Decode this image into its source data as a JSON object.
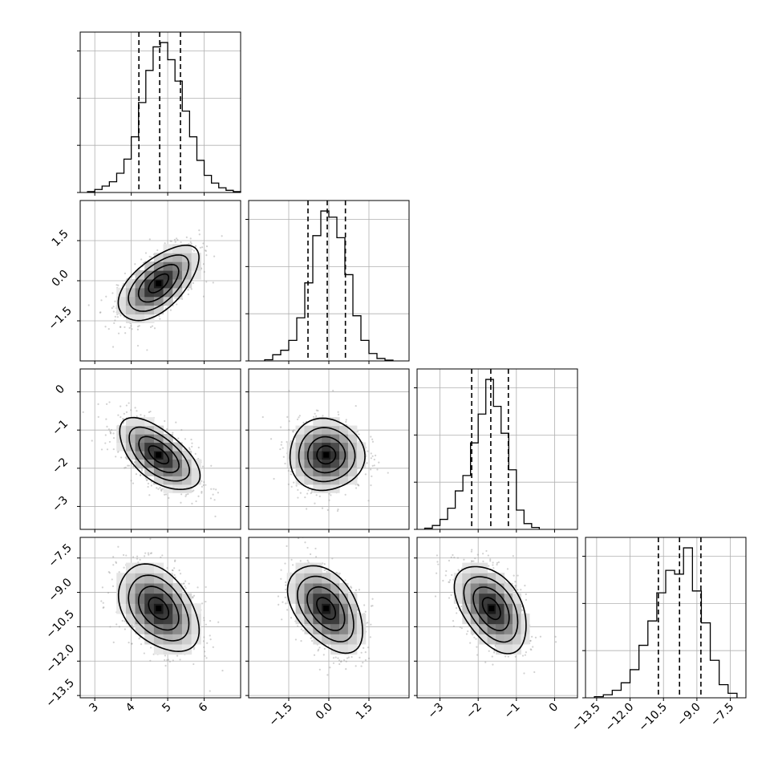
{
  "figure": {
    "kind": "corner-plot",
    "colors": {
      "line": "#000000",
      "grid": "#b0b0b0",
      "scatter": "#9a9a9a",
      "density": [
        "#ffffff",
        "#000000"
      ]
    }
  },
  "chart_data": [
    {
      "type": "histogram",
      "variable_index": 0,
      "xlim": [
        2.6,
        7.0
      ],
      "x_ticks": [
        3,
        4,
        5,
        6
      ],
      "grid": true,
      "bins": [
        2.8,
        3.0,
        3.2,
        3.4,
        3.6,
        3.8,
        4.0,
        4.2,
        4.4,
        4.6,
        4.8,
        5.0,
        5.2,
        5.4,
        5.6,
        5.8,
        6.0,
        6.2,
        6.4,
        6.6,
        6.8,
        7.0
      ],
      "counts": [
        0.2,
        0.7,
        1.5,
        2.5,
        4.5,
        7.8,
        13,
        21,
        28.5,
        34,
        35,
        31,
        26,
        19,
        13,
        7.5,
        4,
        2.2,
        1.1,
        0.5,
        0.2
      ],
      "quantiles": [
        4.21,
        4.78,
        5.35
      ]
    },
    {
      "type": "histogram",
      "variable_index": 1,
      "xlim": [
        -3.0,
        3.0
      ],
      "x_ticks": [
        -1.5,
        0.0,
        1.5
      ],
      "grid": true,
      "bins": [
        -2.4,
        -2.1,
        -1.8,
        -1.5,
        -1.2,
        -0.9,
        -0.6,
        -0.3,
        0.0,
        0.3,
        0.6,
        0.9,
        1.2,
        1.5,
        1.8,
        2.1,
        2.4
      ],
      "counts": [
        0.3,
        1.5,
        2.6,
        5,
        10.5,
        19,
        30.5,
        36.5,
        35,
        30,
        21,
        11,
        5,
        1.8,
        0.6,
        0.2
      ],
      "quantiles": [
        -0.78,
        -0.06,
        0.62
      ]
    },
    {
      "type": "histogram",
      "variable_index": 2,
      "xlim": [
        -3.6,
        0.6
      ],
      "x_ticks": [
        -3,
        -2,
        -1,
        0
      ],
      "grid": true,
      "bins": [
        -3.4,
        -3.2,
        -3.0,
        -2.8,
        -2.6,
        -2.4,
        -2.2,
        -2.0,
        -1.8,
        -1.6,
        -1.4,
        -1.2,
        -1.0,
        -0.8,
        -0.6,
        -0.4
      ],
      "counts": [
        0.3,
        1,
        2.6,
        5.5,
        10,
        14,
        22.5,
        30,
        39,
        32,
        25,
        15.5,
        5,
        1.5,
        0.5
      ],
      "quantiles": [
        -2.17,
        -1.67,
        -1.21
      ]
    },
    {
      "type": "histogram",
      "variable_index": 3,
      "xlim": [
        -14.0,
        -6.8
      ],
      "x_ticks": [
        -13.5,
        -12.0,
        -10.5,
        -9.0,
        -7.5
      ],
      "grid": true,
      "bins": [
        -13.6,
        -13.2,
        -12.8,
        -12.4,
        -12.0,
        -11.6,
        -11.2,
        -10.8,
        -10.4,
        -10.0,
        -9.6,
        -9.2,
        -8.8,
        -8.4,
        -8.0,
        -7.6,
        -7.2
      ],
      "counts": [
        0.3,
        0.8,
        2,
        4,
        7.5,
        14,
        20.5,
        28,
        34,
        33,
        40,
        28.5,
        20,
        10,
        3.5,
        1.2
      ],
      "quantiles": [
        -10.73,
        -9.78,
        -8.82
      ]
    },
    {
      "type": "heatmap",
      "x_variable": 0,
      "y_variable": 1,
      "xlim": [
        2.6,
        7.0
      ],
      "ylim": [
        -3.0,
        3.0
      ],
      "x_ticks": [
        3,
        4,
        5,
        6
      ],
      "y_ticks": [
        -1.5,
        0.0,
        1.5
      ],
      "center": [
        4.75,
        -0.1
      ],
      "sigma": [
        0.55,
        0.7
      ],
      "correlation": 0.6,
      "contour_levels": [
        0.5,
        1.0,
        1.5,
        2.0
      ]
    },
    {
      "type": "heatmap",
      "x_variable": 0,
      "y_variable": 2,
      "xlim": [
        2.6,
        7.0
      ],
      "ylim": [
        -3.6,
        0.6
      ],
      "x_ticks": [
        3,
        4,
        5,
        6
      ],
      "y_ticks": [
        -3,
        -2,
        -1,
        0
      ],
      "center": [
        4.75,
        -1.65
      ],
      "sigma": [
        0.55,
        0.47
      ],
      "correlation": -0.6,
      "contour_levels": [
        0.5,
        1.0,
        1.5,
        2.0
      ]
    },
    {
      "type": "heatmap",
      "x_variable": 1,
      "y_variable": 2,
      "xlim": [
        -3.0,
        3.0
      ],
      "ylim": [
        -3.6,
        0.6
      ],
      "x_ticks": [
        -1.5,
        0.0,
        1.5
      ],
      "y_ticks": [
        -3,
        -2,
        -1,
        0
      ],
      "center": [
        -0.1,
        -1.65
      ],
      "sigma": [
        0.7,
        0.47
      ],
      "correlation": 0.0,
      "contour_levels": [
        0.5,
        1.0,
        1.5,
        2.0
      ]
    },
    {
      "type": "heatmap",
      "x_variable": 0,
      "y_variable": 3,
      "xlim": [
        2.6,
        7.0
      ],
      "ylim": [
        -13.6,
        -6.6
      ],
      "x_ticks": [
        3,
        4,
        5,
        6
      ],
      "y_ticks": [
        -13.5,
        -12.0,
        -10.5,
        -9.0,
        -7.5
      ],
      "center": [
        4.75,
        -9.7
      ],
      "sigma": [
        0.55,
        0.95
      ],
      "correlation": -0.4,
      "contour_levels": [
        0.5,
        1.0,
        1.5,
        2.0
      ]
    },
    {
      "type": "heatmap",
      "x_variable": 1,
      "y_variable": 3,
      "xlim": [
        -3.0,
        3.0
      ],
      "ylim": [
        -13.6,
        -6.6
      ],
      "x_ticks": [
        -1.5,
        0.0,
        1.5
      ],
      "y_ticks": [
        -13.5,
        -12.0,
        -10.5,
        -9.0,
        -7.5
      ],
      "center": [
        -0.1,
        -9.7
      ],
      "sigma": [
        0.7,
        0.95
      ],
      "correlation": -0.45,
      "contour_levels": [
        0.5,
        1.0,
        1.5,
        2.0
      ]
    },
    {
      "type": "heatmap",
      "x_variable": 2,
      "y_variable": 3,
      "xlim": [
        -3.6,
        0.6
      ],
      "ylim": [
        -13.6,
        -6.6
      ],
      "x_ticks": [
        -3,
        -2,
        -1,
        0
      ],
      "y_ticks": [
        -13.5,
        -12.0,
        -10.5,
        -9.0,
        -7.5
      ],
      "center": [
        -1.65,
        -9.7
      ],
      "sigma": [
        0.47,
        0.95
      ],
      "correlation": -0.45,
      "contour_levels": [
        0.5,
        1.0,
        1.5,
        2.0
      ]
    }
  ]
}
